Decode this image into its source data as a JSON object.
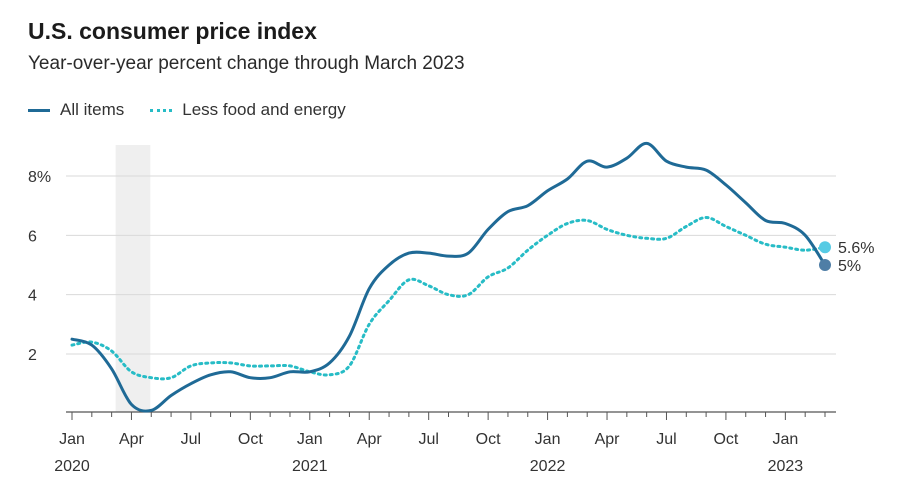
{
  "header": {
    "title": "U.S. consumer price index",
    "subtitle": "Year-over-year percent change through March 2023"
  },
  "colors": {
    "all_items": "#1f6a96",
    "core": "#27bcc6",
    "end_all_items": "#4f7ea6",
    "end_core": "#57cbe4",
    "grid": "#d9d9d9",
    "recession": "#efefef",
    "axis": "#555555"
  },
  "chart_data": {
    "type": "line",
    "title": "U.S. consumer price index",
    "subtitle": "Year-over-year percent change through March 2023",
    "xlabel": "",
    "ylabel": "",
    "ylim": [
      0,
      9.5
    ],
    "y_ticks": [
      {
        "value": 2,
        "label": "2"
      },
      {
        "value": 4,
        "label": "4"
      },
      {
        "value": 6,
        "label": "6"
      },
      {
        "value": 8,
        "label": "8%"
      }
    ],
    "x_ticks": [
      {
        "month": 0,
        "label": "Jan",
        "year": "2020"
      },
      {
        "month": 3,
        "label": "Apr",
        "year": ""
      },
      {
        "month": 6,
        "label": "Jul",
        "year": ""
      },
      {
        "month": 9,
        "label": "Oct",
        "year": ""
      },
      {
        "month": 12,
        "label": "Jan",
        "year": "2021"
      },
      {
        "month": 15,
        "label": "Apr",
        "year": ""
      },
      {
        "month": 18,
        "label": "Jul",
        "year": ""
      },
      {
        "month": 21,
        "label": "Oct",
        "year": ""
      },
      {
        "month": 24,
        "label": "Jan",
        "year": "2022"
      },
      {
        "month": 27,
        "label": "Apr",
        "year": ""
      },
      {
        "month": 30,
        "label": "Jul",
        "year": ""
      },
      {
        "month": 33,
        "label": "Oct",
        "year": ""
      },
      {
        "month": 36,
        "label": "Jan",
        "year": "2023"
      }
    ],
    "recession_band": {
      "start_month": 2,
      "end_month": 4
    },
    "legend": {
      "placement": "top-left"
    },
    "series": [
      {
        "name": "All items",
        "style": "solid",
        "values": [
          2.5,
          2.3,
          1.5,
          0.3,
          0.1,
          0.6,
          1.0,
          1.3,
          1.4,
          1.2,
          1.2,
          1.4,
          1.4,
          1.7,
          2.6,
          4.2,
          5.0,
          5.4,
          5.4,
          5.3,
          5.4,
          6.2,
          6.8,
          7.0,
          7.5,
          7.9,
          8.5,
          8.3,
          8.6,
          9.1,
          8.5,
          8.3,
          8.2,
          7.7,
          7.1,
          6.5,
          6.4,
          6.0,
          5.0
        ],
        "end_label": "5%"
      },
      {
        "name": "Less food and energy",
        "style": "dotted",
        "values": [
          2.3,
          2.4,
          2.1,
          1.4,
          1.2,
          1.2,
          1.6,
          1.7,
          1.7,
          1.6,
          1.6,
          1.6,
          1.4,
          1.3,
          1.6,
          3.0,
          3.8,
          4.5,
          4.3,
          4.0,
          4.0,
          4.6,
          4.9,
          5.5,
          6.0,
          6.4,
          6.5,
          6.2,
          6.0,
          5.9,
          5.9,
          6.3,
          6.6,
          6.3,
          6.0,
          5.7,
          5.6,
          5.5,
          5.6
        ],
        "end_label": "5.6%"
      }
    ]
  }
}
